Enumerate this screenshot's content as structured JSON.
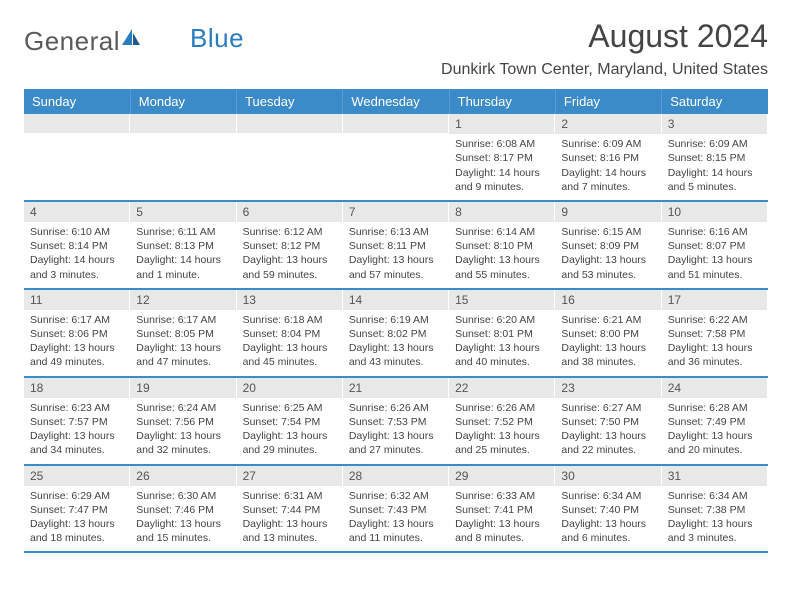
{
  "logo": {
    "part1": "General",
    "part2": "Blue"
  },
  "title": "August 2024",
  "location": "Dunkirk Town Center, Maryland, United States",
  "colors": {
    "header_bg": "#3b8bc9",
    "header_text": "#ffffff",
    "daynum_bg": "#e8e8e8",
    "row_border": "#3b8bc9",
    "body_text": "#444444",
    "logo_gray": "#5a5a5a",
    "logo_blue": "#2a7cc0"
  },
  "layout": {
    "cols": 7,
    "font_family": "Arial"
  },
  "day_headers": [
    "Sunday",
    "Monday",
    "Tuesday",
    "Wednesday",
    "Thursday",
    "Friday",
    "Saturday"
  ],
  "weeks": [
    [
      null,
      null,
      null,
      null,
      {
        "n": "1",
        "sr": "6:08 AM",
        "ss": "8:17 PM",
        "dl": "14 hours and 9 minutes."
      },
      {
        "n": "2",
        "sr": "6:09 AM",
        "ss": "8:16 PM",
        "dl": "14 hours and 7 minutes."
      },
      {
        "n": "3",
        "sr": "6:09 AM",
        "ss": "8:15 PM",
        "dl": "14 hours and 5 minutes."
      }
    ],
    [
      {
        "n": "4",
        "sr": "6:10 AM",
        "ss": "8:14 PM",
        "dl": "14 hours and 3 minutes."
      },
      {
        "n": "5",
        "sr": "6:11 AM",
        "ss": "8:13 PM",
        "dl": "14 hours and 1 minute."
      },
      {
        "n": "6",
        "sr": "6:12 AM",
        "ss": "8:12 PM",
        "dl": "13 hours and 59 minutes."
      },
      {
        "n": "7",
        "sr": "6:13 AM",
        "ss": "8:11 PM",
        "dl": "13 hours and 57 minutes."
      },
      {
        "n": "8",
        "sr": "6:14 AM",
        "ss": "8:10 PM",
        "dl": "13 hours and 55 minutes."
      },
      {
        "n": "9",
        "sr": "6:15 AM",
        "ss": "8:09 PM",
        "dl": "13 hours and 53 minutes."
      },
      {
        "n": "10",
        "sr": "6:16 AM",
        "ss": "8:07 PM",
        "dl": "13 hours and 51 minutes."
      }
    ],
    [
      {
        "n": "11",
        "sr": "6:17 AM",
        "ss": "8:06 PM",
        "dl": "13 hours and 49 minutes."
      },
      {
        "n": "12",
        "sr": "6:17 AM",
        "ss": "8:05 PM",
        "dl": "13 hours and 47 minutes."
      },
      {
        "n": "13",
        "sr": "6:18 AM",
        "ss": "8:04 PM",
        "dl": "13 hours and 45 minutes."
      },
      {
        "n": "14",
        "sr": "6:19 AM",
        "ss": "8:02 PM",
        "dl": "13 hours and 43 minutes."
      },
      {
        "n": "15",
        "sr": "6:20 AM",
        "ss": "8:01 PM",
        "dl": "13 hours and 40 minutes."
      },
      {
        "n": "16",
        "sr": "6:21 AM",
        "ss": "8:00 PM",
        "dl": "13 hours and 38 minutes."
      },
      {
        "n": "17",
        "sr": "6:22 AM",
        "ss": "7:58 PM",
        "dl": "13 hours and 36 minutes."
      }
    ],
    [
      {
        "n": "18",
        "sr": "6:23 AM",
        "ss": "7:57 PM",
        "dl": "13 hours and 34 minutes."
      },
      {
        "n": "19",
        "sr": "6:24 AM",
        "ss": "7:56 PM",
        "dl": "13 hours and 32 minutes."
      },
      {
        "n": "20",
        "sr": "6:25 AM",
        "ss": "7:54 PM",
        "dl": "13 hours and 29 minutes."
      },
      {
        "n": "21",
        "sr": "6:26 AM",
        "ss": "7:53 PM",
        "dl": "13 hours and 27 minutes."
      },
      {
        "n": "22",
        "sr": "6:26 AM",
        "ss": "7:52 PM",
        "dl": "13 hours and 25 minutes."
      },
      {
        "n": "23",
        "sr": "6:27 AM",
        "ss": "7:50 PM",
        "dl": "13 hours and 22 minutes."
      },
      {
        "n": "24",
        "sr": "6:28 AM",
        "ss": "7:49 PM",
        "dl": "13 hours and 20 minutes."
      }
    ],
    [
      {
        "n": "25",
        "sr": "6:29 AM",
        "ss": "7:47 PM",
        "dl": "13 hours and 18 minutes."
      },
      {
        "n": "26",
        "sr": "6:30 AM",
        "ss": "7:46 PM",
        "dl": "13 hours and 15 minutes."
      },
      {
        "n": "27",
        "sr": "6:31 AM",
        "ss": "7:44 PM",
        "dl": "13 hours and 13 minutes."
      },
      {
        "n": "28",
        "sr": "6:32 AM",
        "ss": "7:43 PM",
        "dl": "13 hours and 11 minutes."
      },
      {
        "n": "29",
        "sr": "6:33 AM",
        "ss": "7:41 PM",
        "dl": "13 hours and 8 minutes."
      },
      {
        "n": "30",
        "sr": "6:34 AM",
        "ss": "7:40 PM",
        "dl": "13 hours and 6 minutes."
      },
      {
        "n": "31",
        "sr": "6:34 AM",
        "ss": "7:38 PM",
        "dl": "13 hours and 3 minutes."
      }
    ]
  ],
  "labels": {
    "sunrise": "Sunrise:",
    "sunset": "Sunset:",
    "daylight": "Daylight:"
  }
}
